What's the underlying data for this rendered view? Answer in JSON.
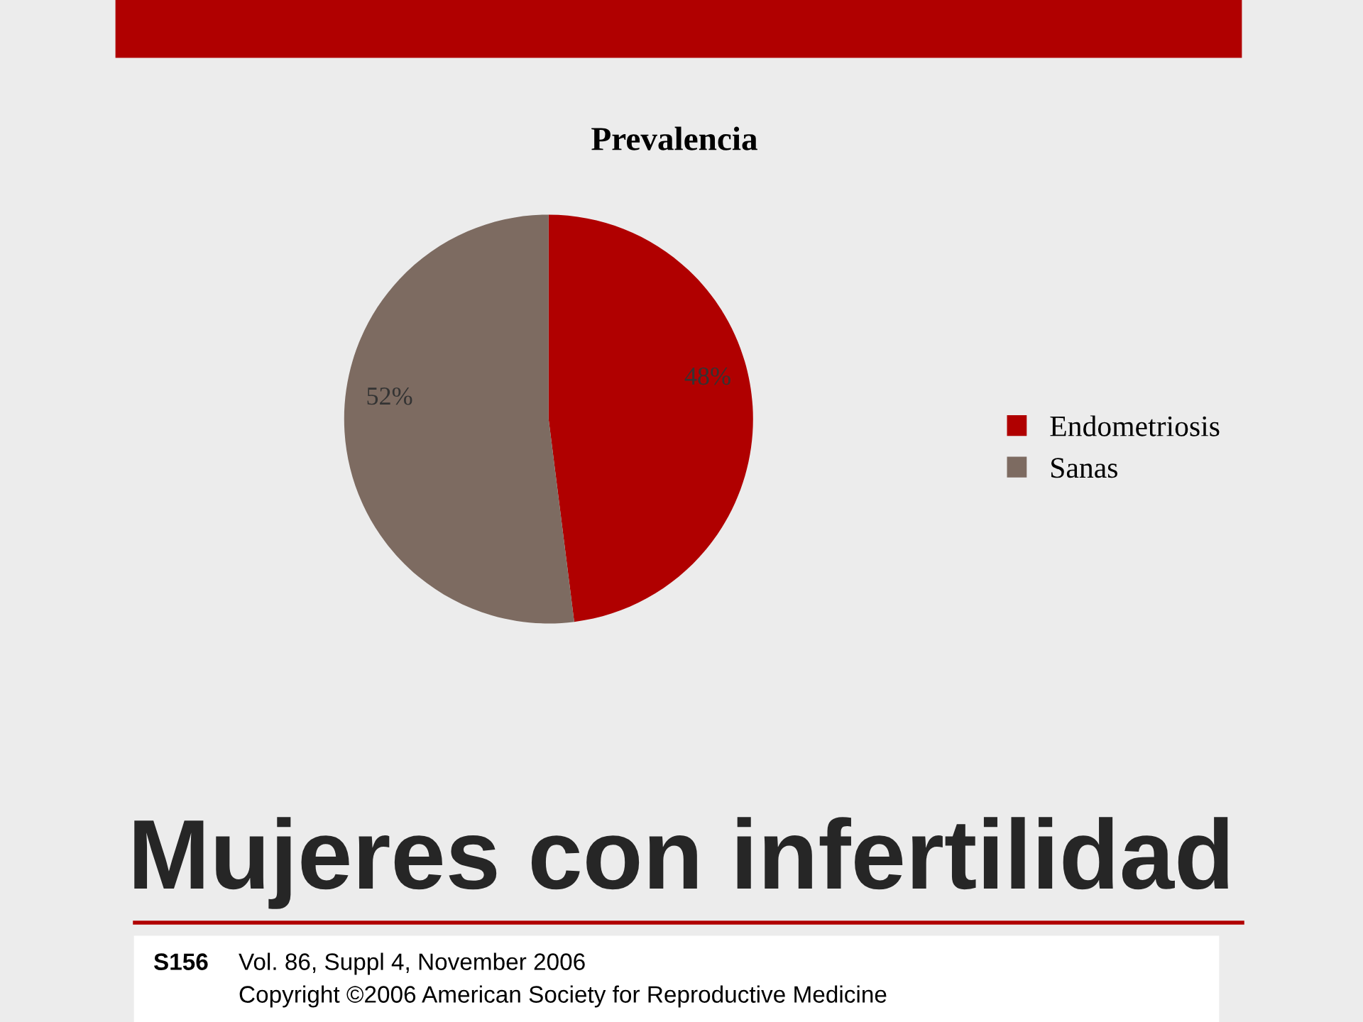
{
  "chart_data": {
    "type": "pie",
    "title": "Prevalencia",
    "categories": [
      "Endometriosis",
      "Sanas"
    ],
    "values": [
      48,
      52
    ],
    "colors": [
      "#b00000",
      "#7d6b61"
    ],
    "value_labels": [
      "48%",
      "52%"
    ],
    "legend": "right",
    "annotations": [
      "Mujeres con infertilidad",
      "S156",
      "Vol. 86, Suppl 4, November 2006",
      "Copyright ©2006 American Society for Reproductive Medicine"
    ]
  }
}
